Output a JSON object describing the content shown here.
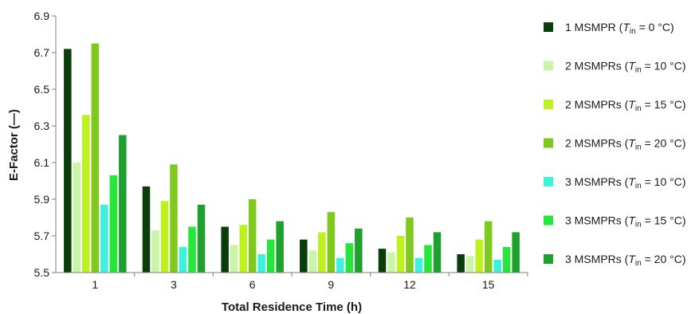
{
  "chart_data": {
    "type": "bar",
    "xlabel": "Total Residence Time (h)",
    "ylabel": "E-Factor (—)",
    "ylim": [
      5.5,
      6.9
    ],
    "yticks": [
      "5.5",
      "5.7",
      "5.9",
      "6.1",
      "6.3",
      "6.5",
      "6.7",
      "6.9"
    ],
    "grid": false,
    "legend_position": "right",
    "categories": [
      "1",
      "3",
      "6",
      "9",
      "12",
      "15"
    ],
    "series": [
      {
        "name": "1 MSMPR",
        "tin": "0 °C",
        "color": "#0a3d0a",
        "values": [
          6.72,
          5.97,
          5.75,
          5.68,
          5.63,
          5.6
        ]
      },
      {
        "name": "2 MSMPRs",
        "tin": "10 °C",
        "color": "#c8f5a8",
        "values": [
          6.1,
          5.73,
          5.65,
          5.62,
          5.61,
          5.59
        ]
      },
      {
        "name": "2 MSMPRs",
        "tin": "15 °C",
        "color": "#bdf21e",
        "values": [
          6.36,
          5.89,
          5.76,
          5.72,
          5.7,
          5.68
        ]
      },
      {
        "name": "2 MSMPRs",
        "tin": "20 °C",
        "color": "#7fc91e",
        "values": [
          6.75,
          6.09,
          5.9,
          5.83,
          5.8,
          5.78
        ]
      },
      {
        "name": "3 MSMPRs",
        "tin": "10 °C",
        "color": "#3cf2dc",
        "values": [
          5.87,
          5.64,
          5.6,
          5.58,
          5.58,
          5.57
        ]
      },
      {
        "name": "3 MSMPRs",
        "tin": "15 °C",
        "color": "#26e63a",
        "values": [
          6.03,
          5.75,
          5.68,
          5.66,
          5.65,
          5.64
        ]
      },
      {
        "name": "3 MSMPRs",
        "tin": "20 °C",
        "color": "#1e9f2e",
        "values": [
          6.25,
          5.87,
          5.78,
          5.74,
          5.72,
          5.72
        ]
      }
    ]
  }
}
